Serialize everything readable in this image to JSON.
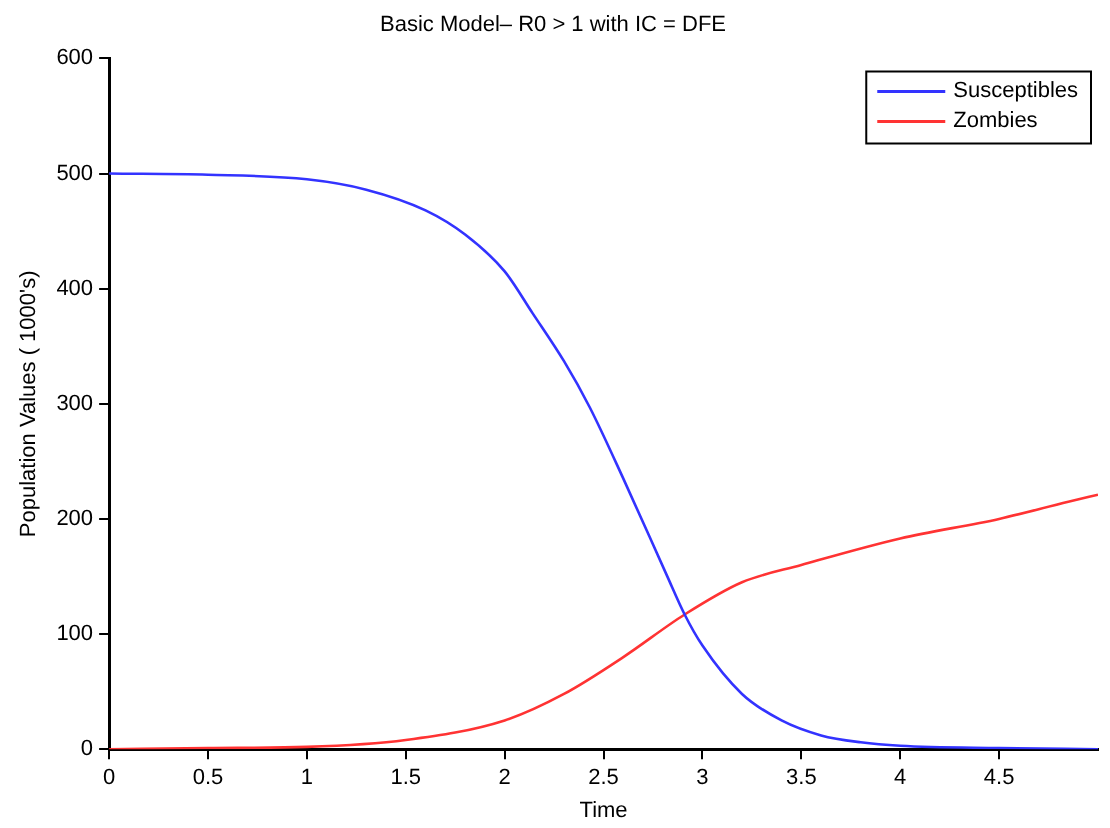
{
  "chart_data": {
    "type": "line",
    "title": "Basic Model– R0 > 1 with IC = DFE",
    "xlabel": "Time",
    "ylabel": "Population Values ( 1000's)",
    "xlim": [
      0,
      5
    ],
    "xticks": [
      0,
      0.5,
      1,
      1.5,
      2,
      2.5,
      3,
      3.5,
      4,
      4.5
    ],
    "ylim": [
      0,
      600
    ],
    "yticks": [
      0,
      100,
      200,
      300,
      400,
      500,
      600
    ],
    "grid": false,
    "legend": "top right",
    "marker": "none",
    "line_style": "solid",
    "series": [
      {
        "name": "Susceptibles",
        "color": "#3333ff",
        "x": [
          0,
          0.5,
          1,
          1.3,
          1.6,
          1.8,
          2,
          2.14,
          2.3,
          2.43,
          2.6,
          2.82,
          2.91,
          3,
          3.2,
          3.4,
          3.6,
          3.8,
          4,
          4.5,
          5
        ],
        "values": [
          500,
          499,
          495,
          486,
          468,
          447,
          415,
          379,
          337,
          297,
          235,
          151,
          117,
          90,
          48,
          25,
          12,
          6,
          3,
          1,
          0
        ]
      },
      {
        "name": "Zombies",
        "color": "#ff3333",
        "x": [
          0,
          0.5,
          1,
          1.5,
          2,
          2.3,
          2.6,
          2.91,
          3.2,
          3.5,
          4,
          4.5,
          4.85,
          5
        ],
        "values": [
          0,
          1,
          2,
          8,
          25,
          48,
          80,
          117,
          145,
          160,
          183,
          200,
          215,
          221
        ]
      }
    ]
  }
}
